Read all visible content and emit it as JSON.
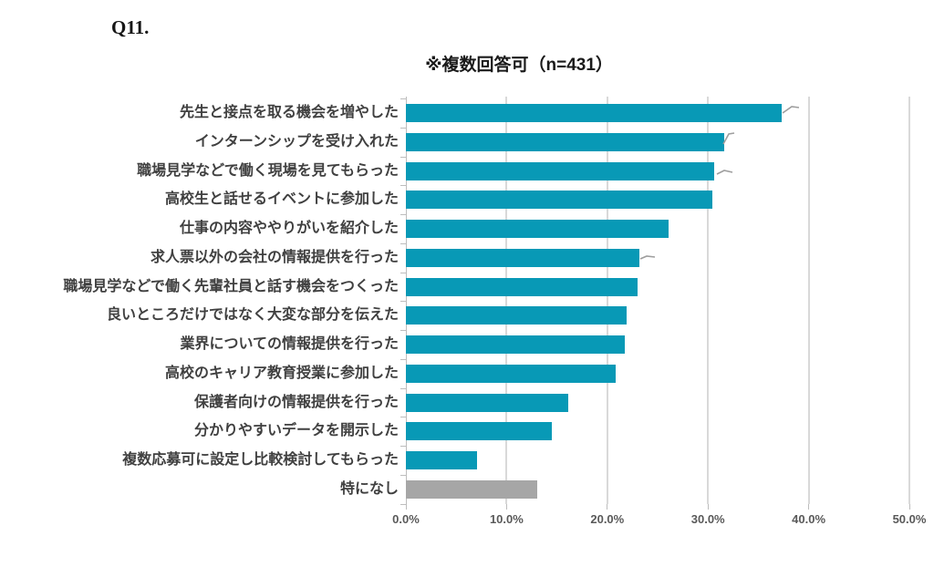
{
  "header": {
    "question_label": "Q11."
  },
  "chart_data": {
    "type": "bar",
    "orientation": "horizontal",
    "title": "※複数回答可（n=431）",
    "categories": [
      "先生と接点を取る機会を増やした",
      "インターンシップを受け入れた",
      "職場見学などで働く現場を見てもらった",
      "高校生と話せるイベントに参加した",
      "仕事の内容ややりがいを紹介した",
      "求人票以外の会社の情報提供を行った",
      "職場見学などで働く先輩社員と話す機会をつくった",
      "良いところだけではなく大変な部分を伝えた",
      "業界についての情報提供を行った",
      "高校のキャリア教育授業に参加した",
      "保護者向けの情報提供を行った",
      "分かりやすいデータを開示した",
      "複数応募可に設定し比較検討してもらった",
      "特になし"
    ],
    "values": [
      37.3,
      31.6,
      30.6,
      30.4,
      26.1,
      23.2,
      23.0,
      21.9,
      21.7,
      20.8,
      16.1,
      14.5,
      7.1,
      13.0
    ],
    "unit": "%",
    "xlim": [
      0,
      50
    ],
    "x_tick_labels": [
      "0.0%",
      "10.0%",
      "20.0%",
      "30.0%",
      "40.0%",
      "50.0%"
    ],
    "grid": true,
    "legend": false,
    "colors": {
      "bar": "#0899B6",
      "neutral_bar": "#A6A6A6",
      "category_text": "#404040",
      "axis_text": "#595959",
      "gridline": "#D9D9D9",
      "axis_line": "#BDBDBD"
    }
  }
}
